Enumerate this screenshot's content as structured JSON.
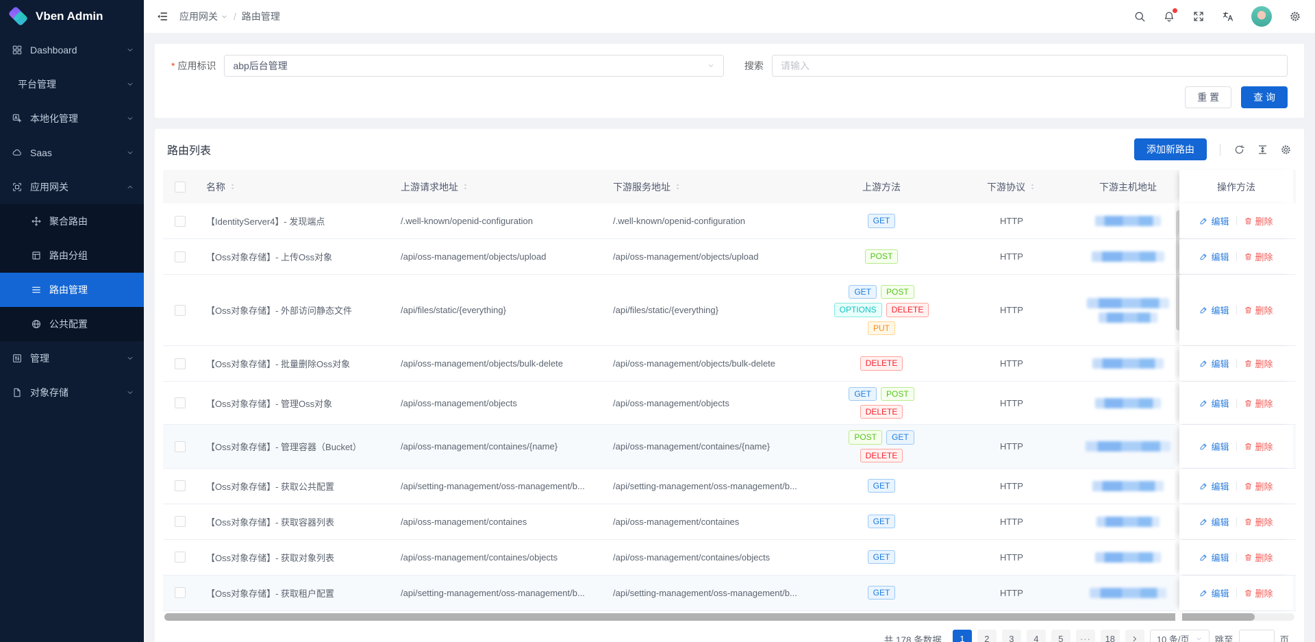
{
  "app": {
    "title": "Vben Admin"
  },
  "colors": {
    "primary": "#1366d4",
    "sidebar_bg": "#0d1c33",
    "submenu_bg": "#091426",
    "content_bg": "#f0f2f5",
    "edit_link": "#2d7fe0",
    "delete_link": "#f25a55"
  },
  "sidebar": {
    "items": [
      {
        "key": "dashboard",
        "label": "Dashboard",
        "icon": "dashboard-icon",
        "chevron": "down"
      },
      {
        "key": "platform-manage",
        "label": "平台管理",
        "chevron": "down"
      },
      {
        "key": "localization-manage",
        "label": "本地化管理",
        "icon": "locale-icon",
        "chevron": "down"
      },
      {
        "key": "saas",
        "label": "Saas",
        "icon": "saas-icon",
        "chevron": "down"
      },
      {
        "key": "app-gateway",
        "label": "应用网关",
        "icon": "gateway-icon",
        "chevron": "up",
        "expanded": true,
        "children": [
          {
            "key": "aggregate-route",
            "label": "聚合路由",
            "icon": "aggregate-route-icon"
          },
          {
            "key": "route-group",
            "label": "路由分组",
            "icon": "route-group-icon"
          },
          {
            "key": "route-manage",
            "label": "路由管理",
            "icon": "route-manage-icon",
            "active": true
          },
          {
            "key": "public-config",
            "label": "公共配置",
            "icon": "global-config-icon"
          }
        ]
      },
      {
        "key": "manage",
        "label": "管理",
        "icon": "manage-icon",
        "chevron": "down"
      },
      {
        "key": "object-storage",
        "label": "对象存储",
        "icon": "storage-icon",
        "chevron": "down"
      }
    ]
  },
  "header": {
    "breadcrumb": [
      {
        "label": "应用网关",
        "dropdown": true
      },
      {
        "label": "路由管理"
      }
    ],
    "separator": "/"
  },
  "filter": {
    "required_mark": "*",
    "app_label": "应用标识",
    "app_value": "abp后台管理",
    "search_label": "搜索",
    "search_placeholder": "请输入",
    "reset_label": "重 置",
    "query_label": "查 询"
  },
  "table": {
    "title": "路由列表",
    "add_button_label": "添加新路由",
    "edit_label": "编辑",
    "delete_label": "删除",
    "columns": [
      {
        "label": "",
        "type": "checkbox"
      },
      {
        "label": "名称",
        "sortable": true
      },
      {
        "label": "上游请求地址",
        "sortable": true
      },
      {
        "label": "下游服务地址",
        "sortable": true
      },
      {
        "label": "上游方法"
      },
      {
        "label": "下游协议",
        "sortable": true
      },
      {
        "label": "下游主机地址"
      },
      {
        "label": "操作方法",
        "fixed": "right"
      }
    ],
    "rows": [
      {
        "name": "【IdentityServer4】- 发现端点",
        "upstream": "/.well-known/openid-configuration",
        "downstream": "/.well-known/openid-configuration",
        "methods": [
          "GET"
        ],
        "scheme": "HTTP"
      },
      {
        "name": "【Oss对象存储】- 上传Oss对象",
        "upstream": "/api/oss-management/objects/upload",
        "downstream": "/api/oss-management/objects/upload",
        "methods": [
          "POST"
        ],
        "scheme": "HTTP"
      },
      {
        "name": "【Oss对象存储】- 外部访问静态文件",
        "upstream": "/api/files/static/{everything}",
        "downstream": "/api/files/static/{everything}",
        "methods": [
          "GET",
          "POST",
          "OPTIONS",
          "DELETE",
          "PUT"
        ],
        "scheme": "HTTP",
        "tall": true
      },
      {
        "name": "【Oss对象存储】- 批量删除Oss对象",
        "upstream": "/api/oss-management/objects/bulk-delete",
        "downstream": "/api/oss-management/objects/bulk-delete",
        "methods": [
          "DELETE"
        ],
        "scheme": "HTTP"
      },
      {
        "name": "【Oss对象存储】- 管理Oss对象",
        "upstream": "/api/oss-management/objects",
        "downstream": "/api/oss-management/objects",
        "methods": [
          "GET",
          "POST",
          "DELETE"
        ],
        "scheme": "HTTP"
      },
      {
        "name": "【Oss对象存储】- 管理容器（Bucket）",
        "upstream": "/api/oss-management/containes/{name}",
        "downstream": "/api/oss-management/containes/{name}",
        "methods": [
          "POST",
          "GET",
          "DELETE"
        ],
        "scheme": "HTTP",
        "striped": true
      },
      {
        "name": "【Oss对象存储】- 获取公共配置",
        "upstream": "/api/setting-management/oss-management/b...",
        "downstream": "/api/setting-management/oss-management/b...",
        "methods": [
          "GET"
        ],
        "scheme": "HTTP"
      },
      {
        "name": "【Oss对象存储】- 获取容器列表",
        "upstream": "/api/oss-management/containes",
        "downstream": "/api/oss-management/containes",
        "methods": [
          "GET"
        ],
        "scheme": "HTTP"
      },
      {
        "name": "【Oss对象存储】- 获取对象列表",
        "upstream": "/api/oss-management/containes/objects",
        "downstream": "/api/oss-management/containes/objects",
        "methods": [
          "GET"
        ],
        "scheme": "HTTP"
      },
      {
        "name": "【Oss对象存储】- 获取租户配置",
        "upstream": "/api/setting-management/oss-management/b...",
        "downstream": "/api/setting-management/oss-management/b...",
        "methods": [
          "GET"
        ],
        "scheme": "HTTP",
        "striped": true
      }
    ]
  },
  "method_colors": {
    "GET": {
      "text": "#1b7ce0",
      "bg": "#e9f4fe",
      "border": "#9cc9f5"
    },
    "POST": {
      "text": "#52c41a",
      "bg": "#f6ffed",
      "border": "#b7eb8f"
    },
    "OPTIONS": {
      "text": "#13c2c2",
      "bg": "#e6fffb",
      "border": "#87e8de"
    },
    "DELETE": {
      "text": "#f5222d",
      "bg": "#fff1f0",
      "border": "#ffa39e"
    },
    "PUT": {
      "text": "#fa8c16",
      "bg": "#fff7e6",
      "border": "#ffd591"
    }
  },
  "pagination": {
    "total_text": "共 178 条数据",
    "pages": [
      "1",
      "2",
      "3",
      "4",
      "5",
      "···",
      "18"
    ],
    "active_page": "1",
    "page_size_value": "10 条/页",
    "jump_label": "跳至",
    "page_unit_label": "页"
  }
}
